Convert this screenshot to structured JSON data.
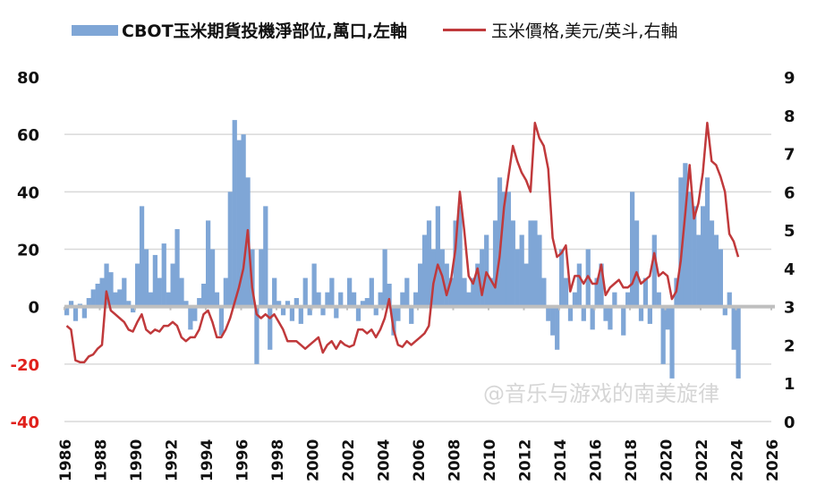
{
  "legend": {
    "position_label": "CBOT玉米期貨投機淨部位,萬口,左軸",
    "price_label": "玉米價格,美元/英斗,右軸"
  },
  "watermark": "@音乐与游戏的南美旋律",
  "colors": {
    "bars": "#7fa6d6",
    "line": "#c0393b",
    "negative_ticks": "#e0201b",
    "grid": "#d9d9d9",
    "zero_axis": "#bfbfbf"
  },
  "chart_data": {
    "type": "bar+line",
    "title": "",
    "left_axis": {
      "ylim": [
        -40,
        80
      ],
      "ticks": [
        "80",
        "60",
        "40",
        "20",
        "0",
        "-20",
        "-40"
      ],
      "tick_values": [
        80,
        60,
        40,
        20,
        0,
        -20,
        -40
      ]
    },
    "right_axis": {
      "ylim": [
        0,
        9
      ],
      "ticks": [
        "9",
        "8",
        "7",
        "6",
        "5",
        "4",
        "3",
        "2",
        "1",
        "0"
      ],
      "tick_values": [
        9,
        8,
        7,
        6,
        5,
        4,
        3,
        2,
        1,
        0
      ]
    },
    "x_axis": {
      "xlim": [
        1986,
        2026
      ],
      "ticks": [
        "1986",
        "1988",
        "1990",
        "1992",
        "1994",
        "1996",
        "1998",
        "2000",
        "2002",
        "2004",
        "2006",
        "2008",
        "2010",
        "2012",
        "2014",
        "2016",
        "2018",
        "2020",
        "2022",
        "2024",
        "2026"
      ]
    },
    "grid": true,
    "legend_position": "top",
    "x_start": 1986,
    "x_step": 0.25,
    "series": [
      {
        "name": "CBOT玉米期貨投機淨部位,萬口,左軸",
        "type": "bar",
        "axis": "left",
        "values": [
          -3,
          2,
          -5,
          1,
          -4,
          3,
          6,
          8,
          10,
          15,
          12,
          5,
          6,
          10,
          2,
          -2,
          15,
          35,
          20,
          5,
          18,
          10,
          22,
          5,
          15,
          27,
          10,
          2,
          -8,
          -5,
          3,
          8,
          30,
          20,
          5,
          -10,
          10,
          40,
          65,
          58,
          60,
          45,
          20,
          -20,
          20,
          35,
          -15,
          10,
          2,
          -3,
          2,
          -5,
          3,
          -6,
          10,
          -3,
          15,
          5,
          -3,
          5,
          10,
          -4,
          5,
          0,
          10,
          5,
          -5,
          2,
          3,
          10,
          -3,
          5,
          20,
          8,
          -10,
          -5,
          5,
          10,
          -6,
          5,
          15,
          25,
          30,
          20,
          35,
          20,
          15,
          10,
          30,
          35,
          10,
          5,
          10,
          15,
          20,
          25,
          10,
          30,
          45,
          40,
          40,
          30,
          20,
          25,
          15,
          30,
          30,
          25,
          10,
          -5,
          -10,
          -15,
          20,
          10,
          -5,
          5,
          15,
          -5,
          20,
          -8,
          10,
          15,
          -5,
          -8,
          5,
          0,
          -10,
          5,
          40,
          30,
          -5,
          10,
          -6,
          25,
          5,
          -20,
          -8,
          -25,
          10,
          45,
          50,
          40,
          35,
          25,
          35,
          45,
          30,
          25,
          20,
          -3,
          5,
          -15,
          -25
        ]
      },
      {
        "name": "玉米價格,美元/英斗,右軸",
        "type": "line",
        "axis": "right",
        "values": [
          2.5,
          2.4,
          1.6,
          1.55,
          1.55,
          1.7,
          1.75,
          1.9,
          2.0,
          3.4,
          2.9,
          2.8,
          2.7,
          2.6,
          2.4,
          2.35,
          2.6,
          2.8,
          2.4,
          2.3,
          2.4,
          2.35,
          2.5,
          2.5,
          2.6,
          2.5,
          2.2,
          2.1,
          2.2,
          2.2,
          2.4,
          2.8,
          2.9,
          2.6,
          2.2,
          2.2,
          2.4,
          2.7,
          3.1,
          3.5,
          4.0,
          5.0,
          3.5,
          2.8,
          2.7,
          2.8,
          2.7,
          2.8,
          2.6,
          2.4,
          2.1,
          2.1,
          2.1,
          2.0,
          1.9,
          2.0,
          2.1,
          2.2,
          1.8,
          2.0,
          2.1,
          1.9,
          2.1,
          2.0,
          1.95,
          2.0,
          2.4,
          2.4,
          2.3,
          2.4,
          2.2,
          2.4,
          2.7,
          3.2,
          2.4,
          2.0,
          1.95,
          2.1,
          2.0,
          2.1,
          2.2,
          2.3,
          2.5,
          3.6,
          4.1,
          3.8,
          3.3,
          3.7,
          4.5,
          6.0,
          5.0,
          3.8,
          3.6,
          4.0,
          3.3,
          3.9,
          3.7,
          3.5,
          4.3,
          5.6,
          6.4,
          7.2,
          6.8,
          6.5,
          6.3,
          6.0,
          7.8,
          7.4,
          7.2,
          6.6,
          4.8,
          4.3,
          4.4,
          4.6,
          3.4,
          3.8,
          3.8,
          3.6,
          3.8,
          3.6,
          3.6,
          4.1,
          3.3,
          3.5,
          3.6,
          3.7,
          3.5,
          3.5,
          3.6,
          3.9,
          3.6,
          3.7,
          3.8,
          4.4,
          3.8,
          3.9,
          3.8,
          3.2,
          3.4,
          4.2,
          5.4,
          6.7,
          5.3,
          5.7,
          6.5,
          7.8,
          6.8,
          6.7,
          6.4,
          6.0,
          4.9,
          4.7,
          4.3
        ]
      }
    ]
  }
}
